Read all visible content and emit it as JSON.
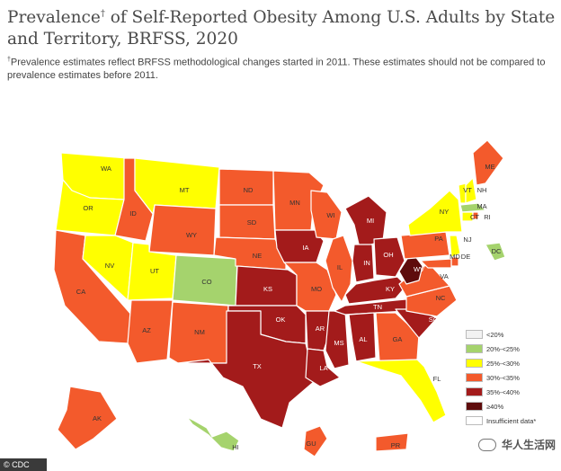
{
  "header": {
    "title_before": "Prevalence",
    "title_mark": "†",
    "title_after": " of Self-Reported Obesity Among U.S. Adults by State and Territory, BRFSS, 2020",
    "note_mark": "†",
    "note": "Prevalence estimates reflect BRFSS methodological changes started in 2011. These estimates should not be compared to prevalence estimates before 2011."
  },
  "colors": {
    "lt20": "#f2f2f2",
    "c20_25": "#a5d36d",
    "c25_30": "#ffff00",
    "c30_35": "#f35a2c",
    "c35_40": "#a31b1b",
    "ge40": "#5e0c0c",
    "insufficient": "#ffffff"
  },
  "legend": [
    {
      "label": "<20%",
      "color": "#f2f2f2"
    },
    {
      "label": "20%-<25%",
      "color": "#a5d36d"
    },
    {
      "label": "25%-<30%",
      "color": "#ffff00"
    },
    {
      "label": "30%-<35%",
      "color": "#f35a2c"
    },
    {
      "label": "35%-<40%",
      "color": "#a31b1b"
    },
    {
      "label": "≥40%",
      "color": "#5e0c0c"
    },
    {
      "label": "Insufficient data*",
      "color": "#ffffff"
    }
  ],
  "states": {
    "WA": "25-30",
    "OR": "25-30",
    "CA": "30-35",
    "NV": "25-30",
    "ID": "30-35",
    "MT": "25-30",
    "WY": "30-35",
    "UT": "25-30",
    "AZ": "30-35",
    "CO": "20-25",
    "NM": "30-35",
    "ND": "30-35",
    "SD": "30-35",
    "NE": "30-35",
    "KS": "35-40",
    "OK": "35-40",
    "TX": "35-40",
    "MN": "30-35",
    "IA": "35-40",
    "MO": "30-35",
    "AR": "35-40",
    "LA": "35-40",
    "WI": "30-35",
    "IL": "30-35",
    "MS": "35-40",
    "MI": "35-40",
    "IN": "35-40",
    "OH": "35-40",
    "KY": "35-40",
    "TN": "35-40",
    "AL": "35-40",
    "GA": "30-35",
    "FL": "25-30",
    "SC": "35-40",
    "NC": "30-35",
    "VA": "30-35",
    "WV": "ge40",
    "PA": "30-35",
    "NY": "25-30",
    "VT": "25-30",
    "NH": "25-30",
    "ME": "30-35",
    "MA": "20-25",
    "CT": "25-30",
    "RI": "30-35",
    "NJ": "25-30",
    "DE": "30-35",
    "MD": "30-35",
    "DC": "20-25",
    "AK": "30-35",
    "HI": "20-25",
    "GU": "30-35",
    "PR": "30-35"
  },
  "credit": "© CDC",
  "watermark": "华人生活网"
}
